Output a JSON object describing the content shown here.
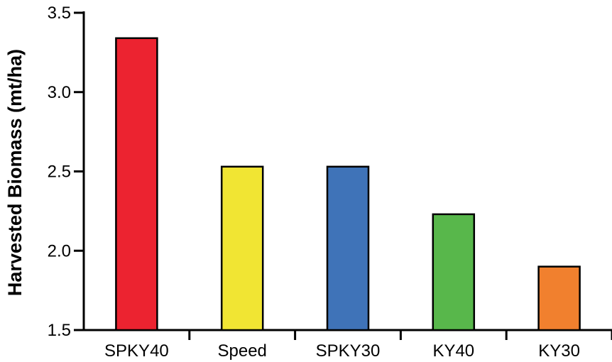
{
  "chart_data": {
    "type": "bar",
    "title": "",
    "xlabel": "",
    "ylabel": "Harvested Biomass (mt/ha)",
    "ylim": [
      1.5,
      3.5
    ],
    "yticks": [
      "1.5",
      "2.0",
      "2.5",
      "3.0",
      "3.5"
    ],
    "categories": [
      "SPKY40",
      "Speed",
      "SPKY30",
      "KY40",
      "KY30"
    ],
    "values": [
      3.34,
      2.53,
      2.53,
      2.23,
      1.9
    ],
    "colors": [
      "#ec2330",
      "#f1e533",
      "#3f73b8",
      "#58b74b",
      "#f1802e"
    ],
    "grid": false,
    "legend": "none"
  }
}
